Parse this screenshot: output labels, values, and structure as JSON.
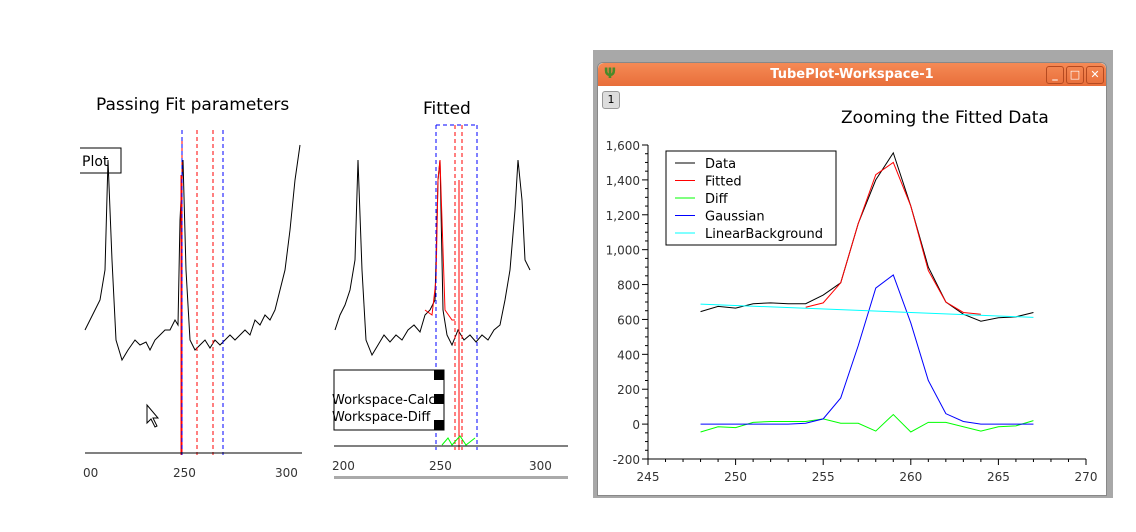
{
  "left_panel": {
    "title": "Passing Fit parameters",
    "legend_fragment": "Plot",
    "x_ticks": [
      "00",
      "250",
      "300"
    ]
  },
  "middle_panel": {
    "title": "Fitted",
    "legend_items": [
      "Workspace-Calc",
      "Workspace-Diff"
    ],
    "x_ticks": [
      "200",
      "250",
      "300"
    ]
  },
  "window": {
    "title": "TubePlot-Workspace-1",
    "tab": "1",
    "minimize": "_",
    "maximize": "□",
    "close": "✕"
  },
  "chart_data": {
    "type": "line",
    "title": "Zooming the Fitted Data",
    "xlabel": "",
    "ylabel": "",
    "xlim": [
      245,
      270
    ],
    "ylim": [
      -200,
      1600
    ],
    "x_ticks": [
      245,
      250,
      255,
      260,
      265,
      270
    ],
    "y_ticks": [
      -200,
      0,
      200,
      400,
      600,
      800,
      1000,
      1200,
      1400,
      1600
    ],
    "y_tick_labels": [
      "-200",
      "0",
      "200",
      "400",
      "600",
      "800",
      "1,000",
      "1,200",
      "1,400",
      "1,600"
    ],
    "legend_position": "top-left",
    "series": [
      {
        "name": "Data",
        "color": "#000000",
        "x": [
          248,
          249,
          250,
          251,
          252,
          253,
          254,
          255,
          256,
          257,
          258,
          259,
          260,
          261,
          262,
          263,
          264,
          265,
          266,
          267
        ],
        "y": [
          645,
          675,
          665,
          690,
          695,
          690,
          690,
          740,
          810,
          1150,
          1400,
          1555,
          1250,
          900,
          700,
          630,
          590,
          610,
          615,
          640
        ]
      },
      {
        "name": "Fitted",
        "color": "#ff0000",
        "x": [
          254,
          255,
          256,
          257,
          258,
          259,
          260,
          261,
          262,
          263,
          264
        ],
        "y": [
          670,
          695,
          810,
          1150,
          1430,
          1500,
          1250,
          880,
          700,
          640,
          630
        ]
      },
      {
        "name": "Diff",
        "color": "#00ff00",
        "x": [
          248,
          249,
          250,
          251,
          252,
          253,
          254,
          255,
          256,
          257,
          258,
          259,
          260,
          261,
          262,
          263,
          264,
          265,
          266,
          267
        ],
        "y": [
          -45,
          -15,
          -20,
          10,
          15,
          15,
          15,
          30,
          5,
          5,
          -40,
          55,
          -45,
          10,
          10,
          -15,
          -40,
          -15,
          -10,
          20
        ]
      },
      {
        "name": "Gaussian",
        "color": "#0000ff",
        "x": [
          248,
          249,
          250,
          251,
          252,
          253,
          254,
          255,
          256,
          257,
          258,
          259,
          260,
          261,
          262,
          263,
          264,
          265,
          266,
          267
        ],
        "y": [
          0,
          0,
          0,
          0,
          0,
          0,
          5,
          30,
          150,
          450,
          780,
          855,
          580,
          250,
          60,
          15,
          0,
          0,
          0,
          0
        ]
      },
      {
        "name": "LinearBackground",
        "color": "#00ffff",
        "x": [
          248,
          267
        ],
        "y": [
          688,
          612
        ]
      }
    ]
  }
}
